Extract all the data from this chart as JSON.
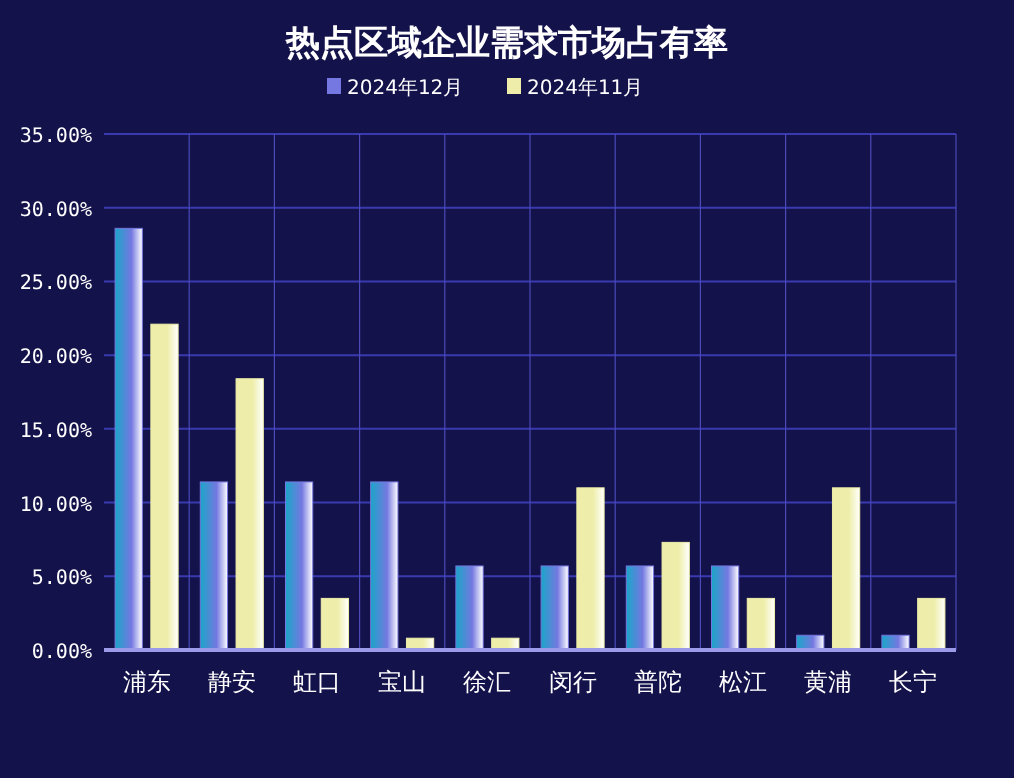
{
  "chart_data": {
    "type": "bar",
    "title": "热点区域企业需求市场占有率",
    "categories": [
      "浦东",
      "静安",
      "虹口",
      "宝山",
      "徐汇",
      "闵行",
      "普陀",
      "松江",
      "黄浦",
      "长宁"
    ],
    "series": [
      {
        "name": "2024年12月",
        "color": "#7478e0",
        "values": [
          28.6,
          11.4,
          11.4,
          11.4,
          5.7,
          5.7,
          5.7,
          5.7,
          1,
          1
        ]
      },
      {
        "name": "2024年11月",
        "color": "#eeeeaa",
        "values": [
          22.1,
          18.4,
          3.5,
          0.8,
          0.8,
          11,
          7.3,
          3.5,
          11,
          3.5
        ]
      }
    ],
    "ylim": [
      0,
      35
    ],
    "yticks": [
      {
        "value": 0,
        "label": "0.00%"
      },
      {
        "value": 5,
        "label": "5.00%"
      },
      {
        "value": 10,
        "label": "10.00%"
      },
      {
        "value": 15,
        "label": "15.00%"
      },
      {
        "value": 20,
        "label": "20.00%"
      },
      {
        "value": 25,
        "label": "25.00%"
      },
      {
        "value": 30,
        "label": "30.00%"
      },
      {
        "value": 35,
        "label": "35.00%"
      }
    ],
    "grid": true,
    "legend": "top"
  }
}
